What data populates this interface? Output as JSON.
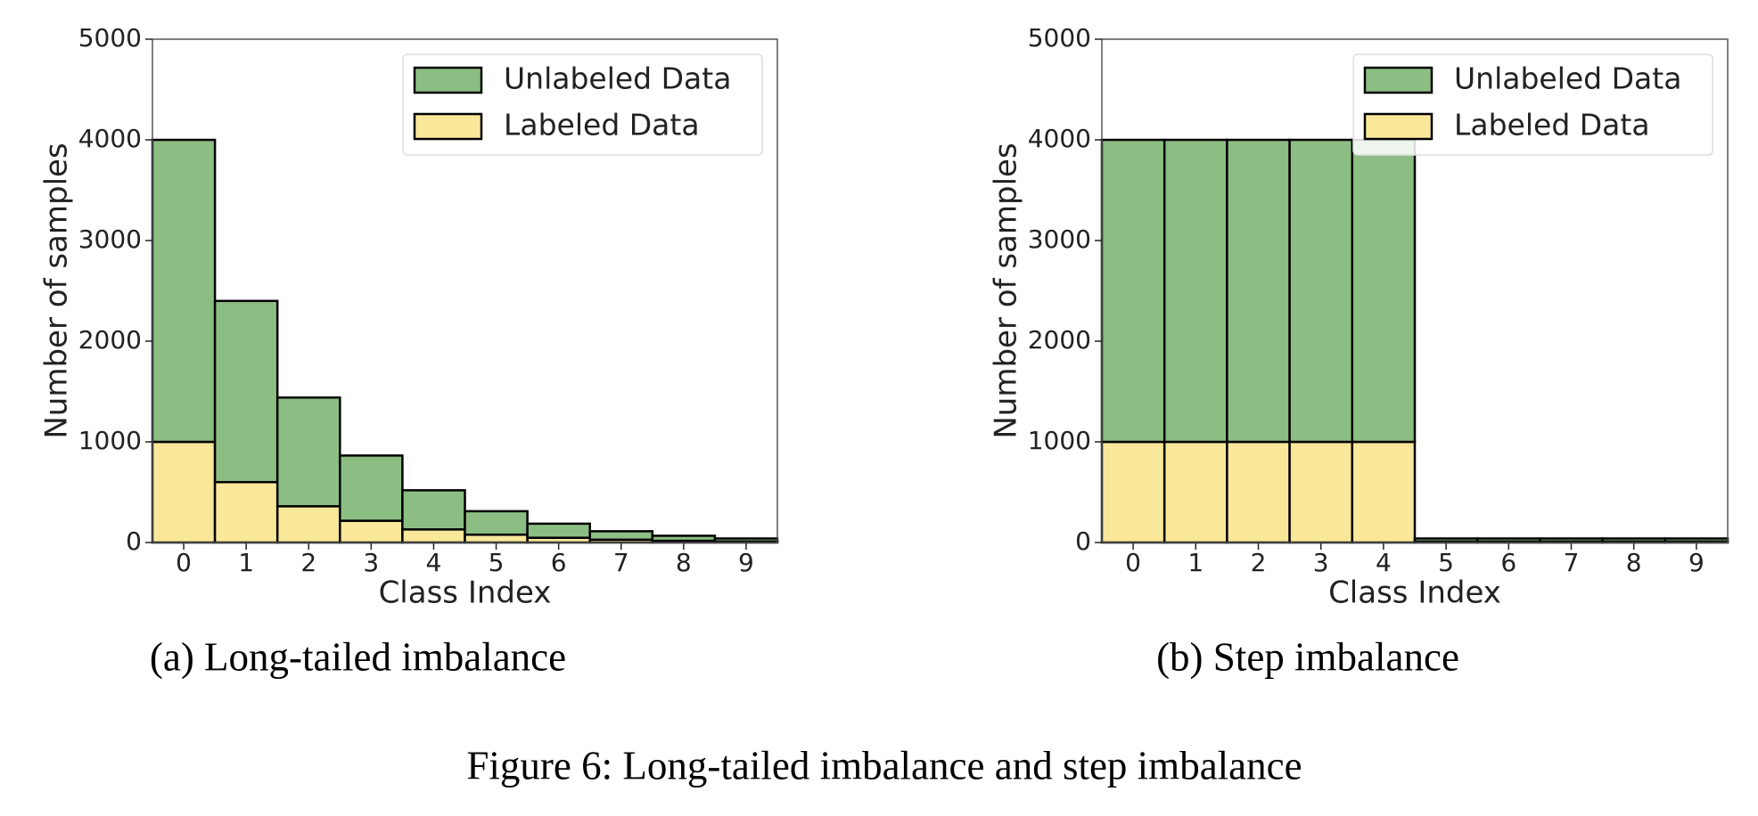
{
  "chart_data": [
    {
      "type": "bar",
      "stacked": true,
      "caption": "(a) Long-tailed imbalance",
      "x_label": "Class Index",
      "y_label": "Number of samples",
      "categories": [
        "0",
        "1",
        "2",
        "3",
        "4",
        "5",
        "6",
        "7",
        "8",
        "9"
      ],
      "series": [
        {
          "name": "Labeled Data",
          "color": "#f9e89a",
          "values": [
            1000,
            600,
            360,
            216,
            130,
            78,
            47,
            28,
            17,
            10
          ]
        },
        {
          "name": "Unlabeled Data",
          "color": "#8cbe84",
          "values": [
            3000,
            1800,
            1080,
            648,
            389,
            233,
            140,
            84,
            50,
            30
          ]
        }
      ],
      "ylim": [
        0,
        5000
      ],
      "yticks": [
        0,
        1000,
        2000,
        3000,
        4000,
        5000
      ],
      "grid": false,
      "legend": "upper right"
    },
    {
      "type": "bar",
      "stacked": true,
      "caption": "(b) Step imbalance",
      "x_label": "Class Index",
      "y_label": "Number of samples",
      "categories": [
        "0",
        "1",
        "2",
        "3",
        "4",
        "5",
        "6",
        "7",
        "8",
        "9"
      ],
      "series": [
        {
          "name": "Labeled Data",
          "color": "#f9e89a",
          "values": [
            1000,
            1000,
            1000,
            1000,
            1000,
            10,
            10,
            10,
            10,
            10
          ]
        },
        {
          "name": "Unlabeled Data",
          "color": "#8cbe84",
          "values": [
            3000,
            3000,
            3000,
            3000,
            3000,
            30,
            30,
            30,
            30,
            30
          ]
        }
      ],
      "ylim": [
        0,
        5000
      ],
      "yticks": [
        0,
        1000,
        2000,
        3000,
        4000,
        5000
      ],
      "grid": false,
      "legend": "upper right"
    }
  ],
  "figure_caption": "Figure 6: Long-tailed imbalance and step imbalance"
}
